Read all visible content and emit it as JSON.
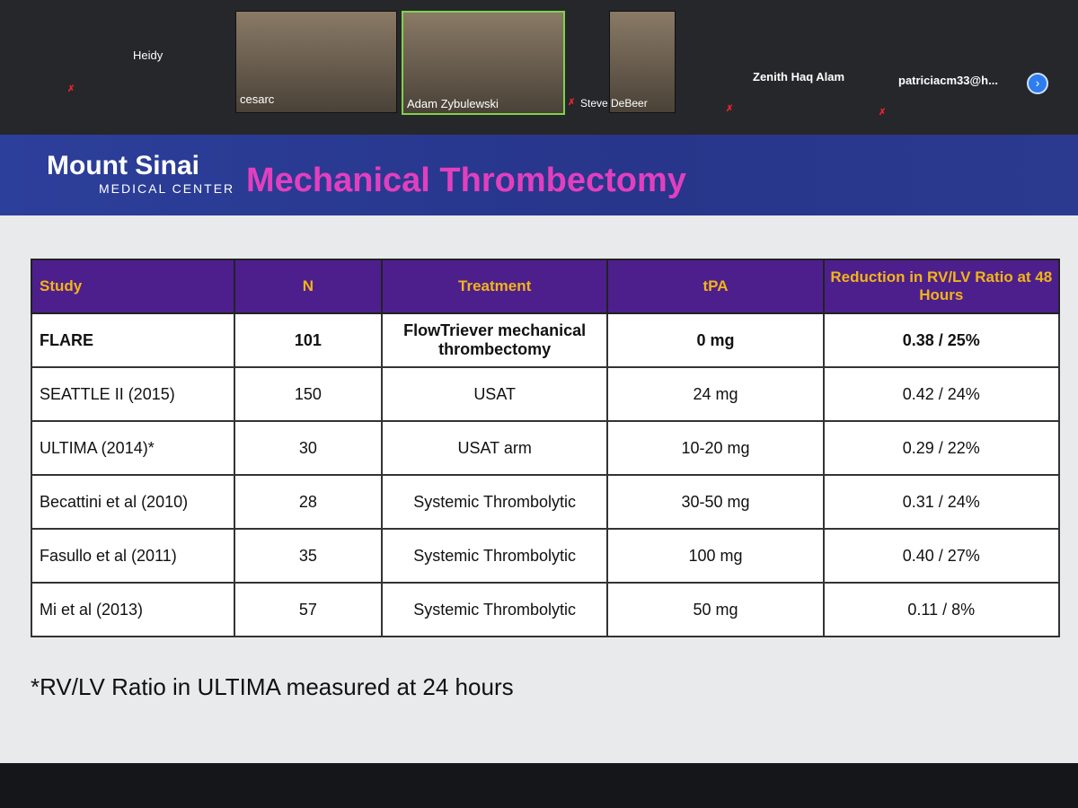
{
  "participants": [
    {
      "name": "Heidy"
    },
    {
      "name": "cesarc"
    },
    {
      "name": "Adam Zybulewski"
    },
    {
      "name": "Steve DeBeer"
    },
    {
      "name": "Zenith Haq Alam"
    },
    {
      "name": "patriciacm33@h..."
    }
  ],
  "slide": {
    "logo": {
      "name": "Mount Sinai",
      "sub": "MEDICAL CENTER"
    },
    "title": "Mechanical Thrombectomy",
    "table": {
      "headers": [
        "Study",
        "N",
        "Treatment",
        "tPA",
        "Reduction in RV/LV Ratio at 48 Hours"
      ],
      "rows": [
        [
          "FLARE",
          "101",
          "FlowTriever mechanical thrombectomy",
          "0 mg",
          "0.38 / 25%"
        ],
        [
          "SEATTLE II (2015)",
          "150",
          "USAT",
          "24 mg",
          "0.42 / 24%"
        ],
        [
          "ULTIMA (2014)*",
          "30",
          "USAT arm",
          "10-20 mg",
          "0.29 / 22%"
        ],
        [
          "Becattini et al (2010)",
          "28",
          "Systemic Thrombolytic",
          "30-50 mg",
          "0.31 / 24%"
        ],
        [
          "Fasullo et al (2011)",
          "35",
          "Systemic Thrombolytic",
          "100 mg",
          "0.40 / 27%"
        ],
        [
          "Mi et al (2013)",
          "57",
          "Systemic Thrombolytic",
          "50 mg",
          "0.11 / 8%"
        ]
      ]
    },
    "footnote": "*RV/LV Ratio in ULTIMA measured at 24 hours"
  }
}
